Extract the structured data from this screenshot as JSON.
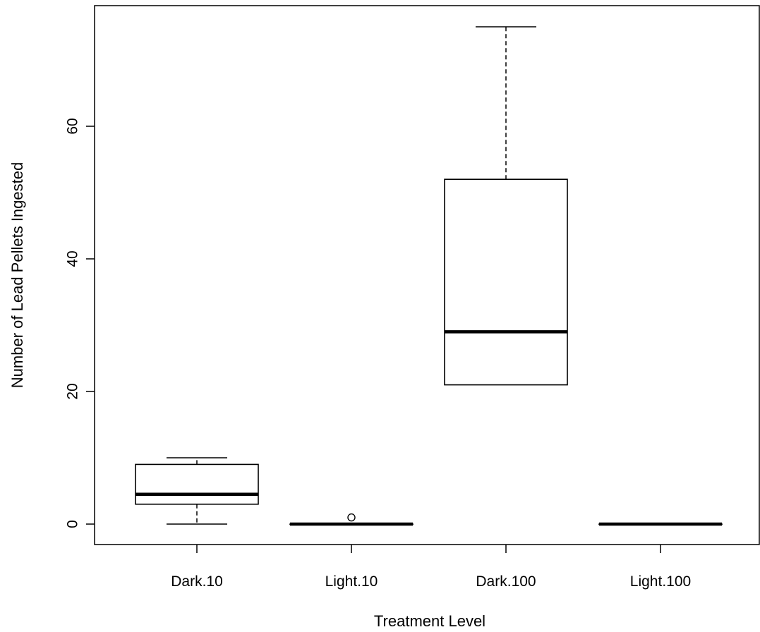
{
  "chart_data": {
    "type": "box",
    "title": "",
    "xlabel": "Treatment Level",
    "ylabel": "Number of Lead Pellets Ingested",
    "ylim": [
      -3,
      75
    ],
    "yticks": [
      0,
      20,
      40,
      60
    ],
    "grid": false,
    "legend": "none",
    "categories": [
      "Dark.10",
      "Light.10",
      "Dark.100",
      "Light.100"
    ],
    "boxes": [
      {
        "category": "Dark.10",
        "min": 0,
        "q1": 3,
        "median": 4.5,
        "q3": 9,
        "max": 10,
        "outliers": []
      },
      {
        "category": "Light.10",
        "min": 0,
        "q1": 0,
        "median": 0,
        "q3": 0,
        "max": 0,
        "outliers": [
          1
        ]
      },
      {
        "category": "Dark.100",
        "min": 21,
        "q1": 21,
        "median": 29,
        "q3": 52,
        "max": 75,
        "outliers": []
      },
      {
        "category": "Light.100",
        "min": 0,
        "q1": 0,
        "median": 0,
        "q3": 0,
        "max": 0,
        "outliers": []
      }
    ]
  }
}
